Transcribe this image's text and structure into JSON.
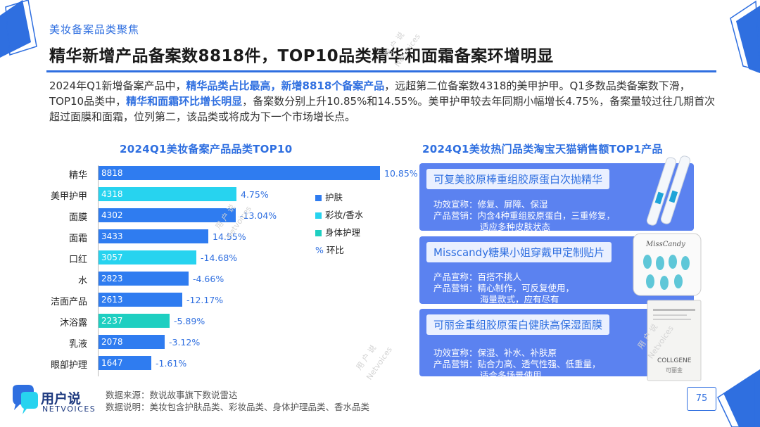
{
  "header": {
    "section_tag": "美妆备案品类聚焦",
    "title": "精华新增产品备案数8818件，TOP10品类精华和面霜备案环增明显"
  },
  "summary": {
    "p1": "2024年Q1新增备案产品中，",
    "h1": "精华品类占比最高，新增8818个备案产品",
    "p2": "，远超第二位备案数4318的美甲护甲。Q1多数品类备案数下滑，TOP10品类中，",
    "h2": "精华和面霜环比增长明显",
    "p3": "，备案数分别上升10.85%和14.55%。美甲护甲较去年同期小幅增长4.75%，备案量较过往几期首次超过面膜和面霜，位列第二，该品类或将成为下一个市场增长点。"
  },
  "chart_data": {
    "type": "bar",
    "orientation": "horizontal",
    "title": "2024Q1美妆备案产品品类TOP10",
    "categories": [
      "精华",
      "美甲护甲",
      "面膜",
      "面霜",
      "口红",
      "水",
      "洁面产品",
      "沐浴露",
      "乳液",
      "眼部护理"
    ],
    "values": [
      8818,
      4318,
      4302,
      3433,
      3057,
      2823,
      2613,
      2237,
      2078,
      1647
    ],
    "value_labels": [
      "8818",
      "4318",
      "4302",
      "3433",
      "3057",
      "2823",
      "2613",
      "2237",
      "2078",
      "1647"
    ],
    "group": [
      "护肤",
      "彩妆/香水",
      "护肤",
      "护肤",
      "彩妆/香水",
      "护肤",
      "护肤",
      "身体护理",
      "护肤",
      "护肤"
    ],
    "mom_change_labels": [
      "10.85%",
      "4.75%",
      "-13.04%",
      "14.55%",
      "-14.68%",
      "-4.66%",
      "-12.17%",
      "-5.89%",
      "-3.12%",
      "-1.61%"
    ],
    "mom_change": [
      10.85,
      4.75,
      -13.04,
      14.55,
      -14.68,
      -4.66,
      -12.17,
      -5.89,
      -3.12,
      -1.61
    ],
    "xlim": [
      0,
      8818
    ],
    "grid": false,
    "legend": {
      "placement": "right",
      "items": [
        {
          "name": "护肤",
          "color": "#2f7cf0"
        },
        {
          "name": "彩妆/香水",
          "color": "#27d3ef"
        },
        {
          "name": "身体护理",
          "color": "#1ecfc1"
        },
        {
          "name": "环比",
          "marker": "%"
        }
      ]
    }
  },
  "products": {
    "title": "2024Q1美妆热门品类淘宝天猫销售额TOP1产品",
    "items": [
      {
        "name": "可复美胶原棒重组胶原蛋白次抛精华",
        "lines": [
          "功效宣称：修复、屏障、保湿",
          "产品营销：内含4种重组胶原蛋白，三重修复，",
          "适应多种皮肤状态"
        ]
      },
      {
        "name": "Misscandy糖果小姐穿戴甲定制贴片",
        "lines": [
          "产品宣称：百搭不挑人",
          "产品营销：精心制作，可反复使用，",
          "海量款式，应有尽有"
        ]
      },
      {
        "name": "可丽金重组胶原蛋白健肤高保湿面膜",
        "lines": [
          "功效宣称：保湿、补水、补肤原",
          "产品营销：贴合力高、透气性强、低重量，",
          "适合多场景使用"
        ]
      }
    ],
    "image_labels": [
      "MissCandy",
      "COLLGENE",
      "可丽金"
    ]
  },
  "footer": {
    "brand_cn": "用户说",
    "brand_en": "NETVOICES",
    "source": "数据来源：数说故事旗下数说雷达",
    "note": "数据说明：美妆包含护肤品类、彩妆品类、身体护理品类、香水品类",
    "page": "75"
  },
  "watermark": {
    "lines": [
      "用 户 说",
      "Netvoices"
    ]
  },
  "colors": {
    "accent": "#2f6fe0",
    "skin": "#2f7cf0",
    "makeup": "#27d3ef",
    "body": "#1ecfc1",
    "card": "#5b82f0"
  }
}
